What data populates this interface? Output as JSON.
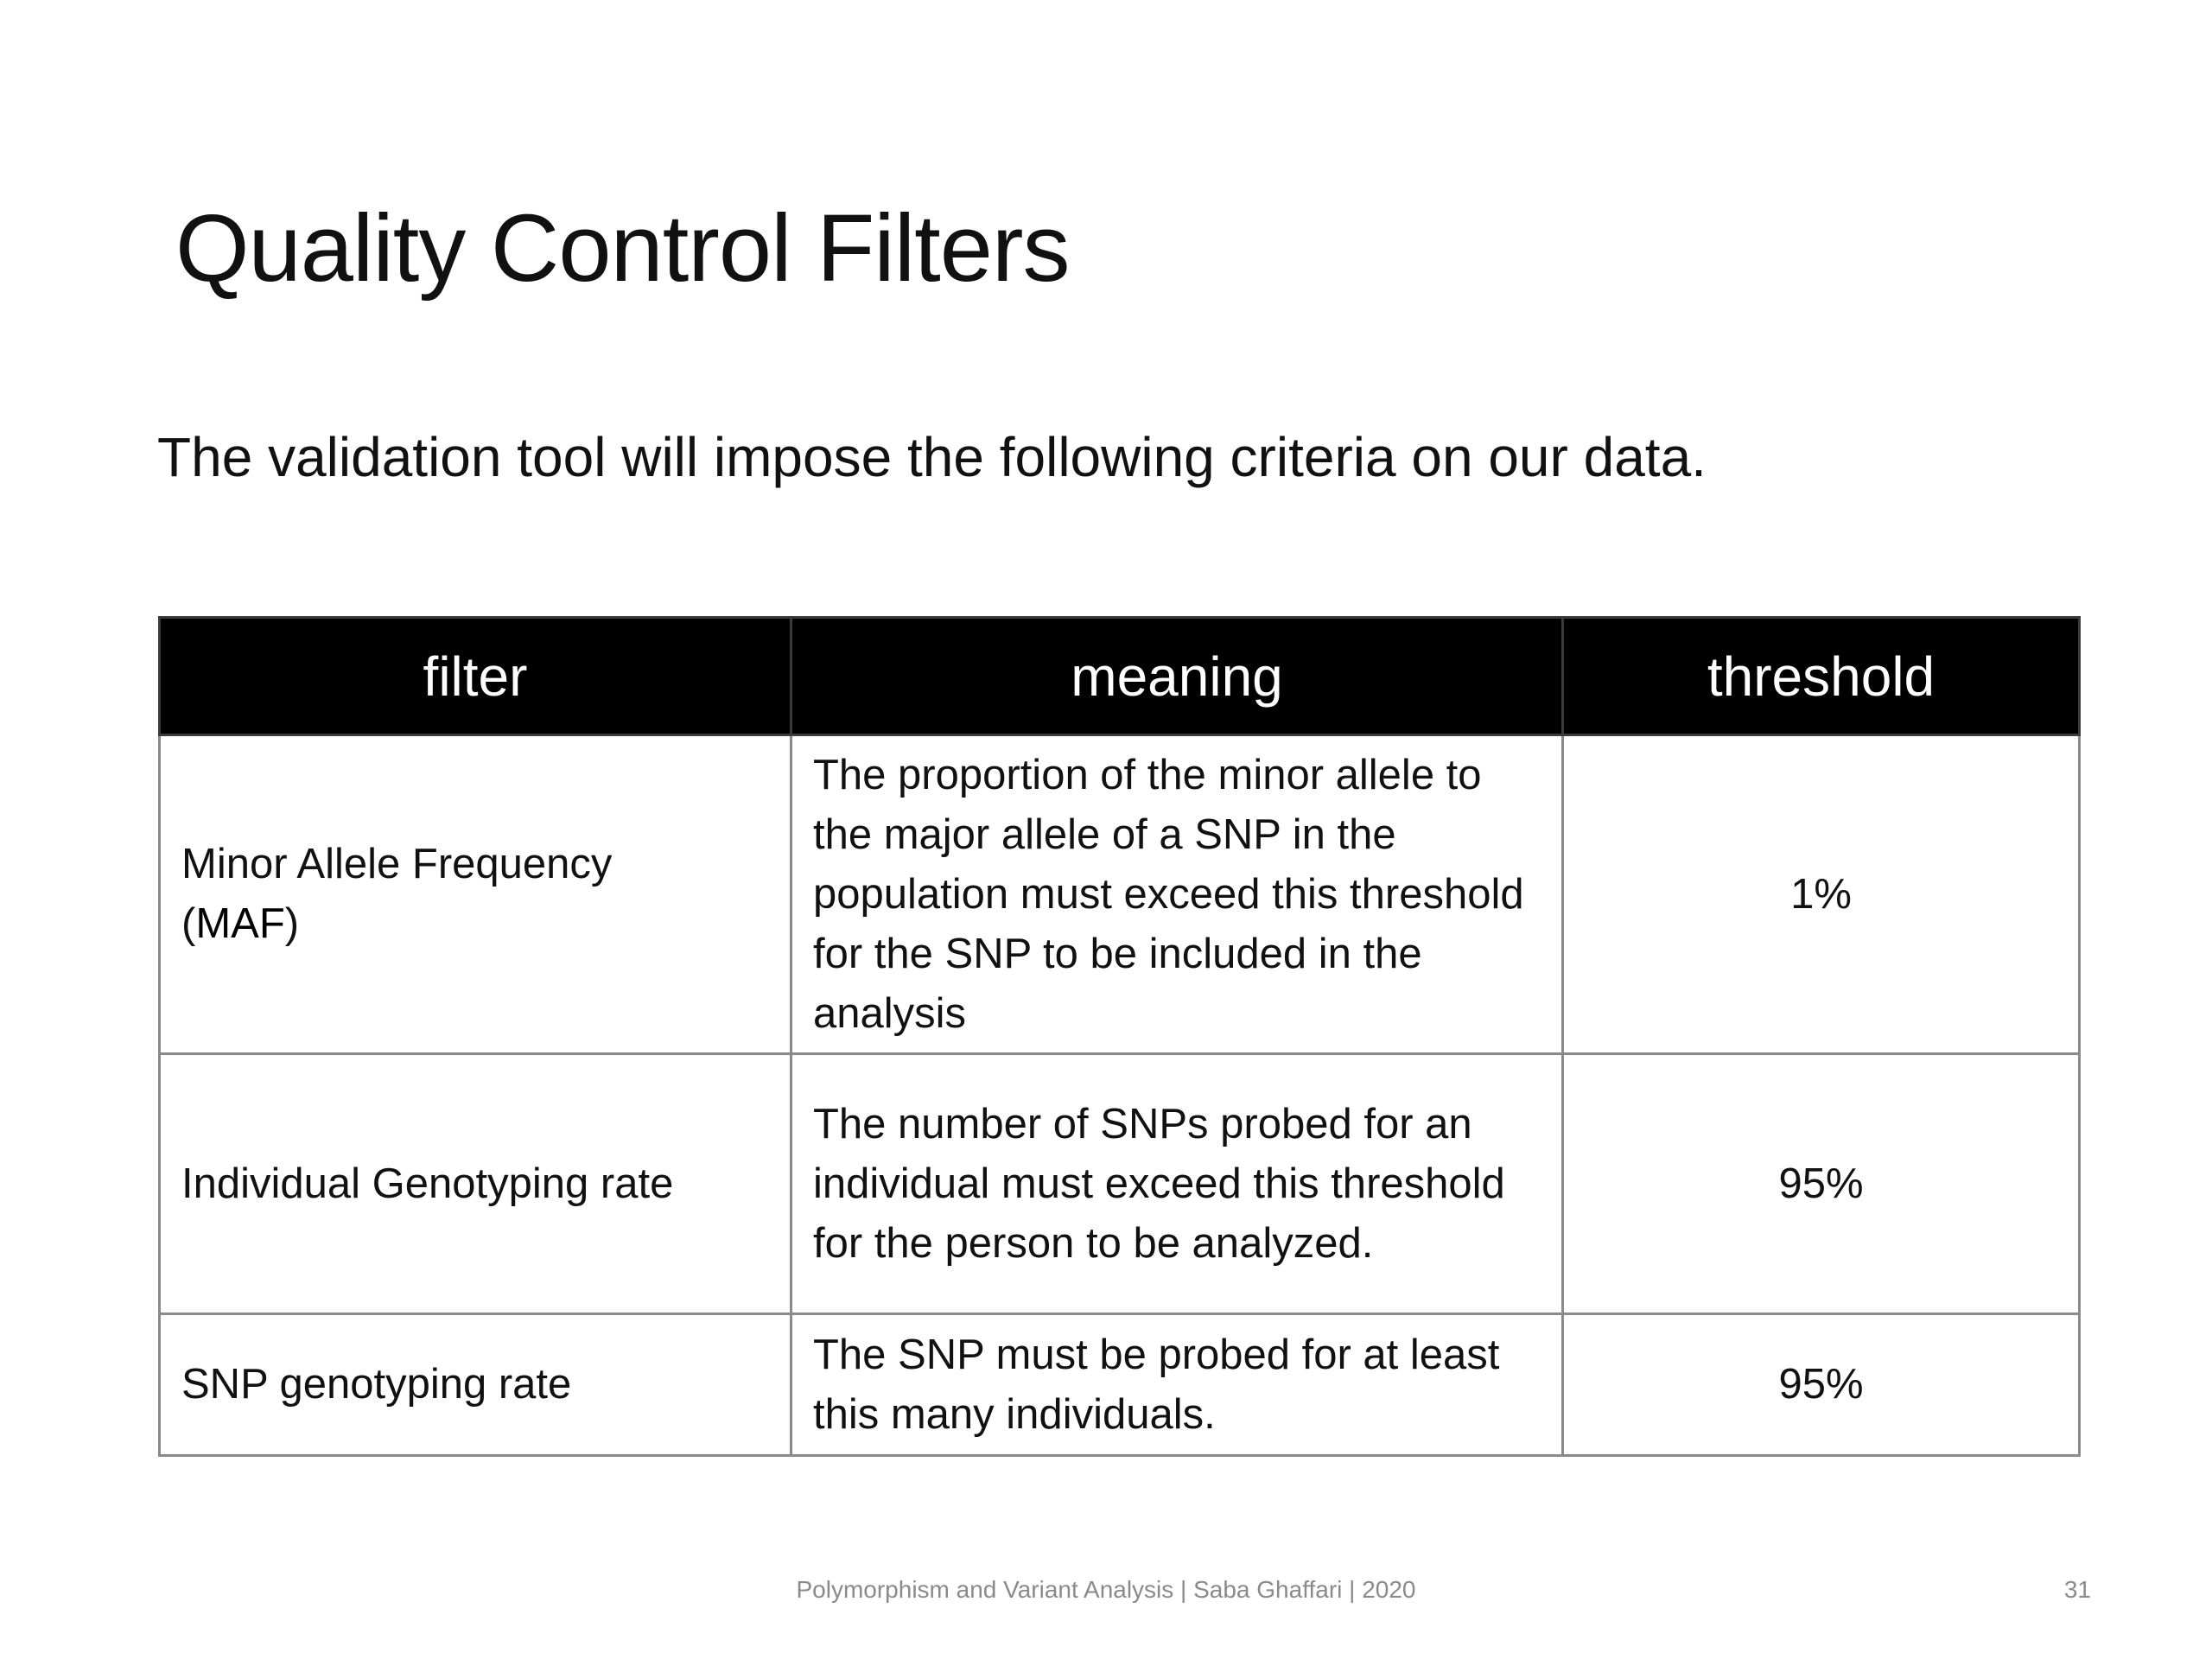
{
  "slide": {
    "title": "Quality Control Filters",
    "subtitle": "The validation tool will impose the following criteria on our data.",
    "table": {
      "headers": [
        "filter",
        "meaning",
        "threshold"
      ],
      "rows": [
        {
          "filter": "Minor Allele Frequency",
          "filter_paren_open": "(",
          "filter_abbr": "MAF",
          "filter_paren_close": ")",
          "meaning": "The proportion of the minor allele to the major allele of a SNP in the population must exceed this threshold for the SNP to be included in the analysis",
          "threshold": "1%"
        },
        {
          "filter": "Individual Genotyping rate",
          "meaning": "The number of SNPs probed for an individual must exceed this threshold for the person to be analyzed.",
          "threshold": "95%"
        },
        {
          "filter": "SNP genotyping rate",
          "meaning": "The SNP must be probed for at least this many individuals.",
          "threshold": "95%"
        }
      ]
    },
    "footer": "Polymorphism and Variant Analysis | Saba Ghaffari | 2020",
    "slide_number": "31"
  }
}
